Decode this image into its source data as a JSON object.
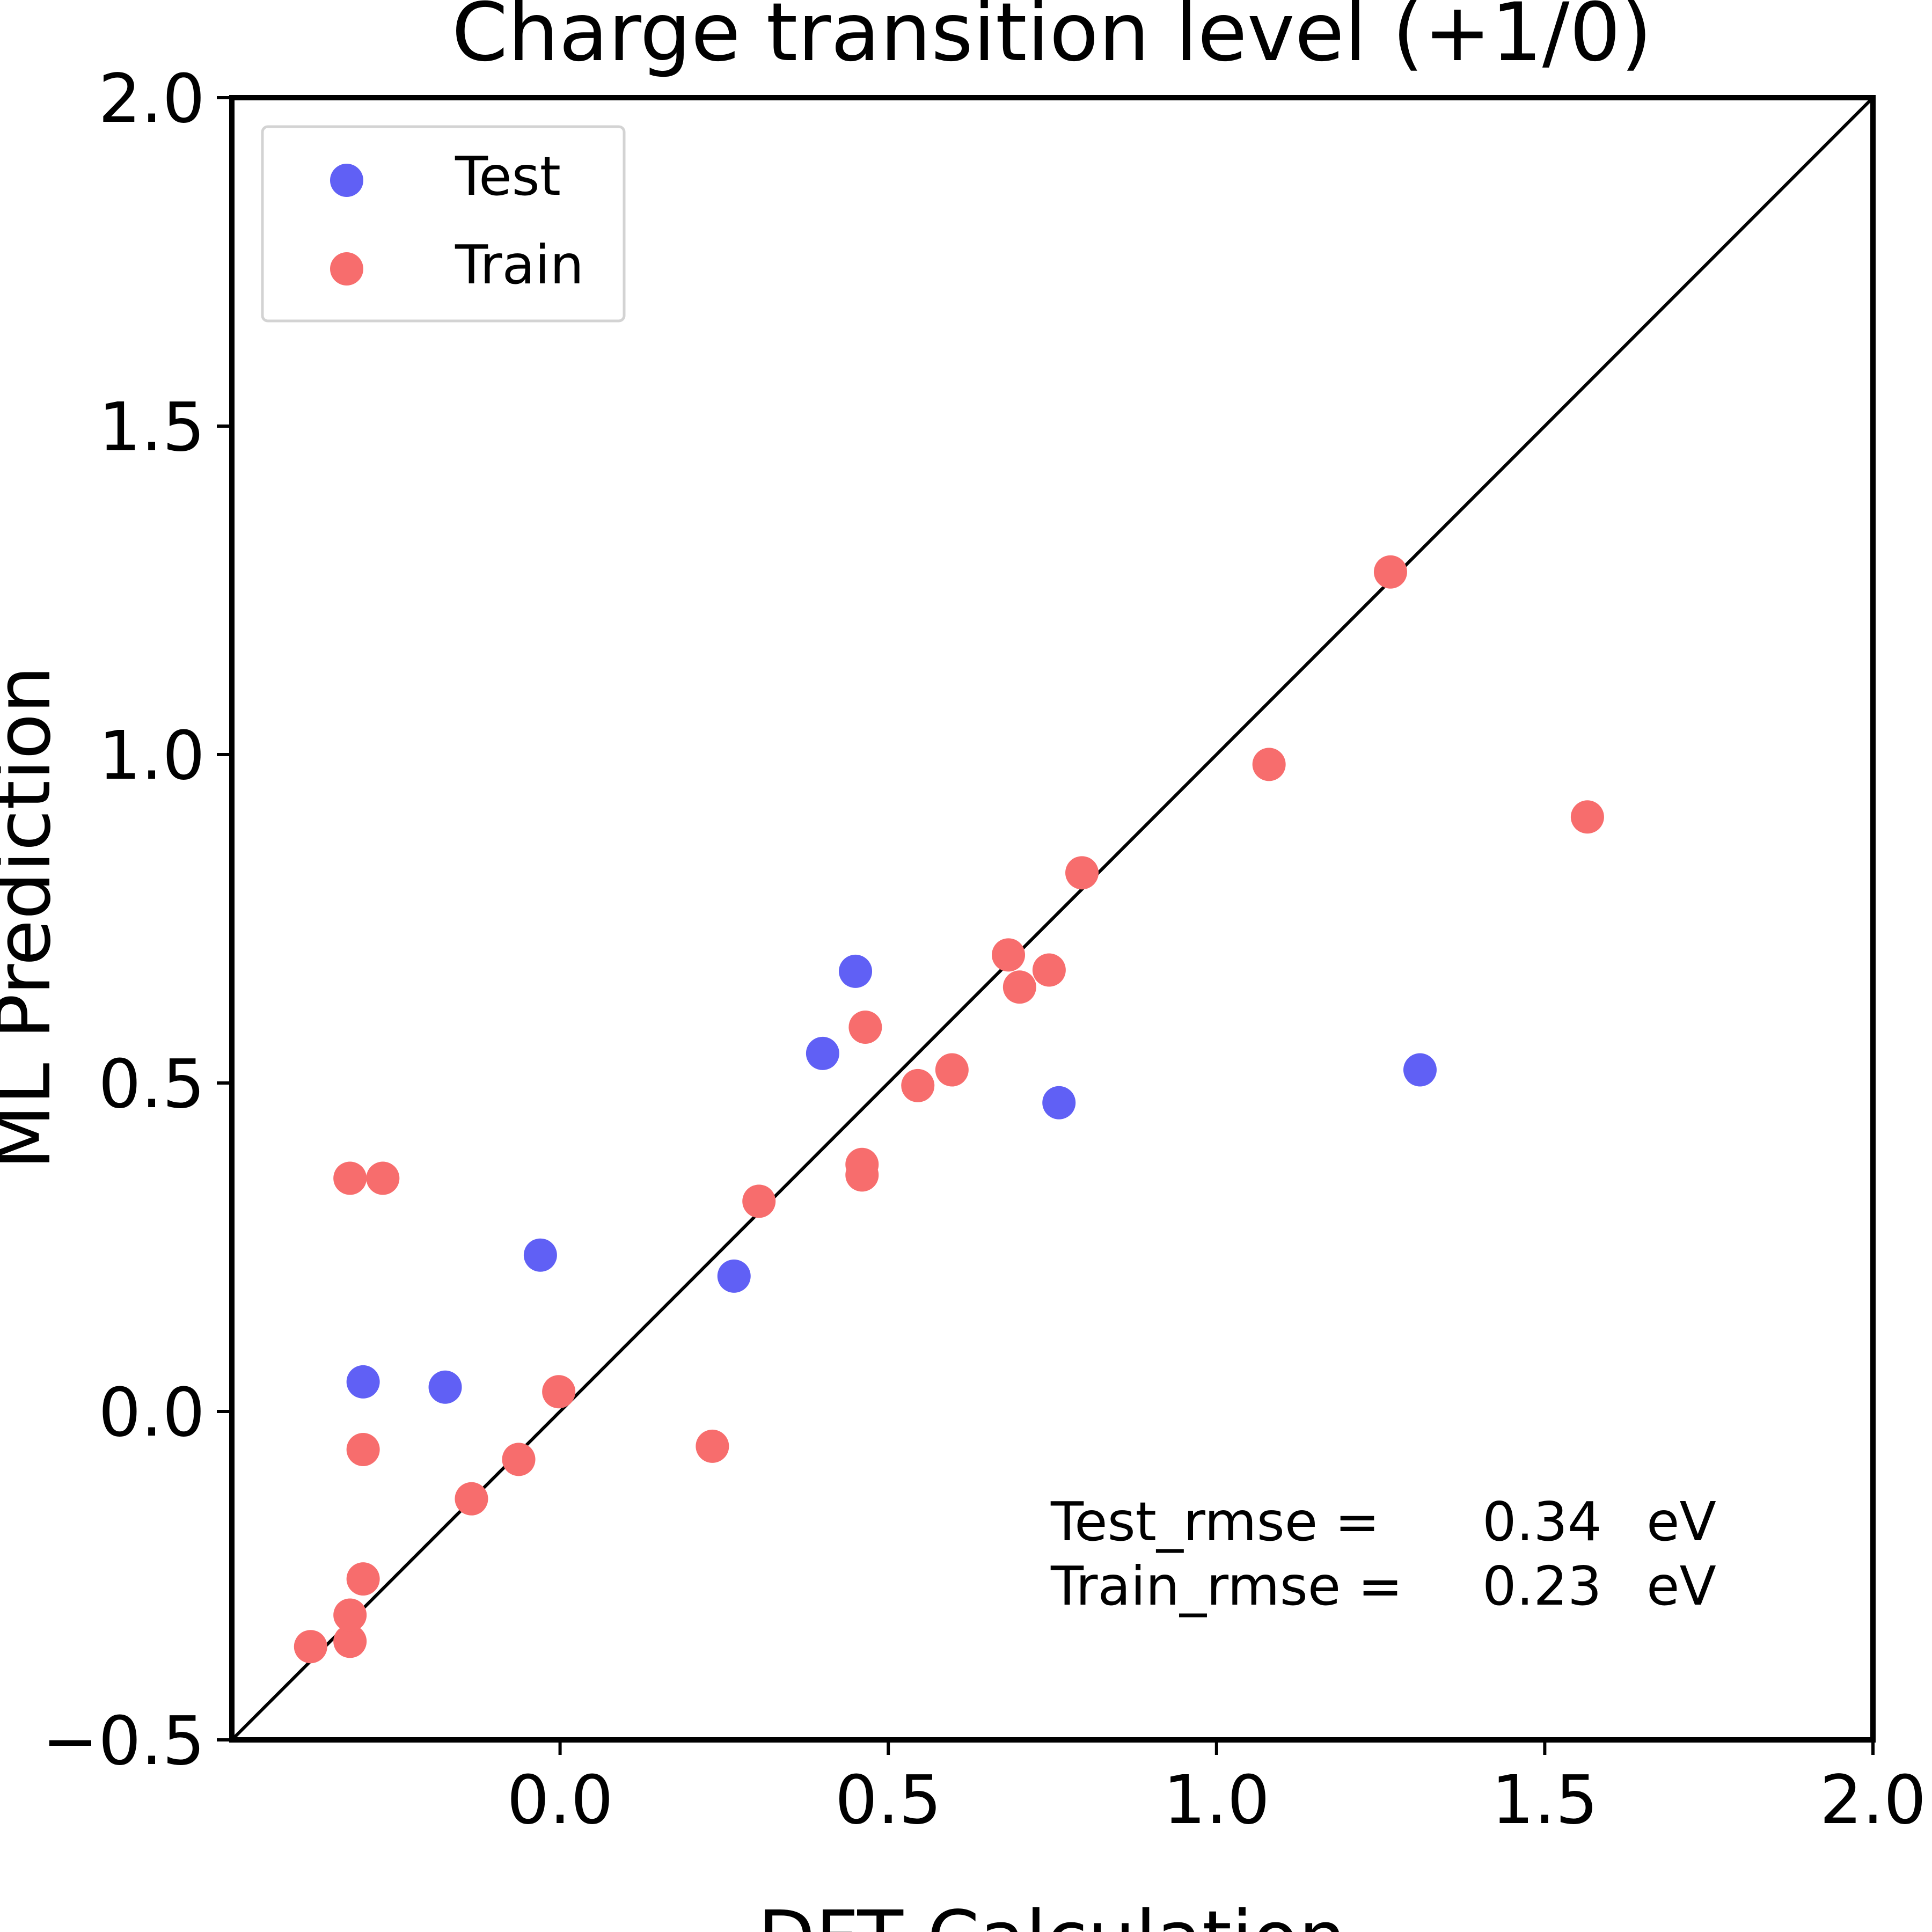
{
  "chart_data": {
    "type": "scatter",
    "title": "Charge transition level (+1/0)",
    "xlabel": "DFT Calculation",
    "ylabel": "ML Prediction",
    "xlim": [
      -0.5,
      2.0
    ],
    "ylim": [
      -0.5,
      2.0
    ],
    "xticks": [
      0.0,
      0.5,
      1.0,
      1.5,
      2.0
    ],
    "xtick_labels": [
      "0.0",
      "0.5",
      "1.0",
      "1.5",
      "2.0"
    ],
    "yticks": [
      -0.5,
      0.0,
      0.5,
      1.0,
      1.5,
      2.0
    ],
    "ytick_labels": [
      "−0.5",
      "0.0",
      "0.5",
      "1.0",
      "1.5",
      "2.0"
    ],
    "grid": false,
    "legend_position": "top-left",
    "diagonal_line": {
      "from": [
        -0.5,
        -0.5
      ],
      "to": [
        2.0,
        2.0
      ],
      "color": "#000000"
    },
    "series": [
      {
        "name": "Test",
        "color": "#6060f5",
        "points": [
          {
            "x": -0.3,
            "y": 0.045
          },
          {
            "x": -0.175,
            "y": 0.037
          },
          {
            "x": -0.03,
            "y": 0.238
          },
          {
            "x": 0.265,
            "y": 0.206
          },
          {
            "x": 0.4,
            "y": 0.545
          },
          {
            "x": 0.45,
            "y": 0.67
          },
          {
            "x": 0.76,
            "y": 0.47
          },
          {
            "x": 1.31,
            "y": 0.52
          }
        ]
      },
      {
        "name": "Train",
        "color": "#f76d6d",
        "points": [
          {
            "x": -0.38,
            "y": -0.358
          },
          {
            "x": -0.32,
            "y": -0.35
          },
          {
            "x": -0.32,
            "y": -0.31
          },
          {
            "x": -0.3,
            "y": -0.255
          },
          {
            "x": -0.3,
            "y": -0.058
          },
          {
            "x": -0.32,
            "y": 0.355
          },
          {
            "x": -0.27,
            "y": 0.355
          },
          {
            "x": -0.135,
            "y": -0.133
          },
          {
            "x": -0.063,
            "y": -0.073
          },
          {
            "x": -0.002,
            "y": 0.03
          },
          {
            "x": 0.232,
            "y": -0.053
          },
          {
            "x": 0.303,
            "y": 0.32
          },
          {
            "x": 0.46,
            "y": 0.36
          },
          {
            "x": 0.46,
            "y": 0.376
          },
          {
            "x": 0.465,
            "y": 0.585
          },
          {
            "x": 0.545,
            "y": 0.496
          },
          {
            "x": 0.597,
            "y": 0.52
          },
          {
            "x": 0.683,
            "y": 0.695
          },
          {
            "x": 0.7,
            "y": 0.646
          },
          {
            "x": 0.745,
            "y": 0.672
          },
          {
            "x": 0.795,
            "y": 0.82
          },
          {
            "x": 1.08,
            "y": 0.985
          },
          {
            "x": 1.265,
            "y": 1.278
          },
          {
            "x": 1.565,
            "y": 0.905
          }
        ]
      }
    ],
    "annotations": [
      {
        "label": "Test_rmse =",
        "value": "0.34",
        "unit": "eV"
      },
      {
        "label": "Train_rmse =",
        "value": "0.23",
        "unit": "eV"
      }
    ]
  }
}
